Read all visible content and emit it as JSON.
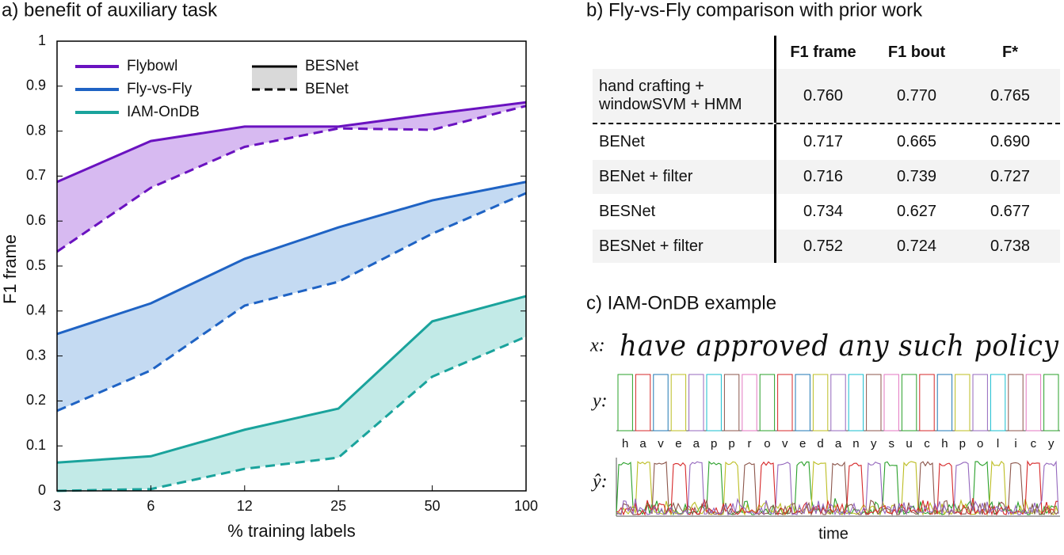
{
  "chart_data": {
    "type": "line",
    "title": "a)  benefit of auxiliary task",
    "x_label": "% training labels",
    "y_label": "F1 frame",
    "categories": [
      "3",
      "6",
      "12",
      "25",
      "50",
      "100"
    ],
    "ylim": [
      0,
      1
    ],
    "yticks": [
      0,
      0.1,
      0.2,
      0.3,
      0.4,
      0.5,
      0.6,
      0.7,
      0.8,
      0.9,
      1
    ],
    "line_styles": {
      "solid": "BESNet",
      "dashed": "BENet"
    },
    "series": [
      {
        "name": "Flybowl",
        "color": "#6a12c0",
        "fill": "#c9a3ec",
        "values": [
          0.687,
          0.778,
          0.81,
          0.81,
          0.838,
          0.864
        ],
        "benet_values": [
          0.532,
          0.674,
          0.765,
          0.806,
          0.803,
          0.856
        ]
      },
      {
        "name": "Fly-vs-Fly",
        "color": "#1f63c4",
        "fill": "#b0cdee",
        "values": [
          0.349,
          0.417,
          0.516,
          0.586,
          0.646,
          0.687
        ],
        "benet_values": [
          0.178,
          0.268,
          0.412,
          0.465,
          0.572,
          0.662
        ]
      },
      {
        "name": "IAM-OnDB",
        "color": "#1aa39c",
        "fill": "#ade3df",
        "values": [
          0.063,
          0.077,
          0.136,
          0.183,
          0.377,
          0.433
        ],
        "benet_values": [
          0,
          0.004,
          0.049,
          0.074,
          0.254,
          0.343
        ]
      }
    ]
  },
  "table": {
    "title": "b)  Fly-vs-Fly comparison with prior work",
    "header": [
      "F1 frame",
      "F1 bout",
      "F*"
    ],
    "rows": [
      {
        "label": [
          "hand crafting +",
          "windowSVM + HMM"
        ],
        "cells": [
          "0.760",
          "0.770",
          "0.765"
        ]
      },
      {
        "label": [
          "BENet"
        ],
        "cells": [
          "0.717",
          "0.665",
          "0.690"
        ]
      },
      {
        "label": [
          "BENet + filter"
        ],
        "cells": [
          "0.716",
          "0.739",
          "0.727"
        ]
      },
      {
        "label": [
          "BESNet"
        ],
        "cells": [
          "0.734",
          "0.627",
          "0.677"
        ]
      },
      {
        "label": [
          "BESNet + filter"
        ],
        "cells": [
          "0.752",
          "0.724",
          "0.738"
        ]
      }
    ]
  },
  "example": {
    "title": "c)  IAM-OnDB example",
    "x_label": "x:",
    "y_label": "y:",
    "yhat_label": "ŷ:",
    "handwriting": "have approved any such policy",
    "letters": [
      "h",
      "a",
      "v",
      "e",
      "a",
      "p",
      "p",
      "r",
      "o",
      "v",
      "e",
      "d",
      "a",
      "n",
      "y",
      "s",
      "u",
      "c",
      "h",
      "p",
      "o",
      "l",
      "i",
      "c",
      "y"
    ],
    "time_label": "time"
  }
}
